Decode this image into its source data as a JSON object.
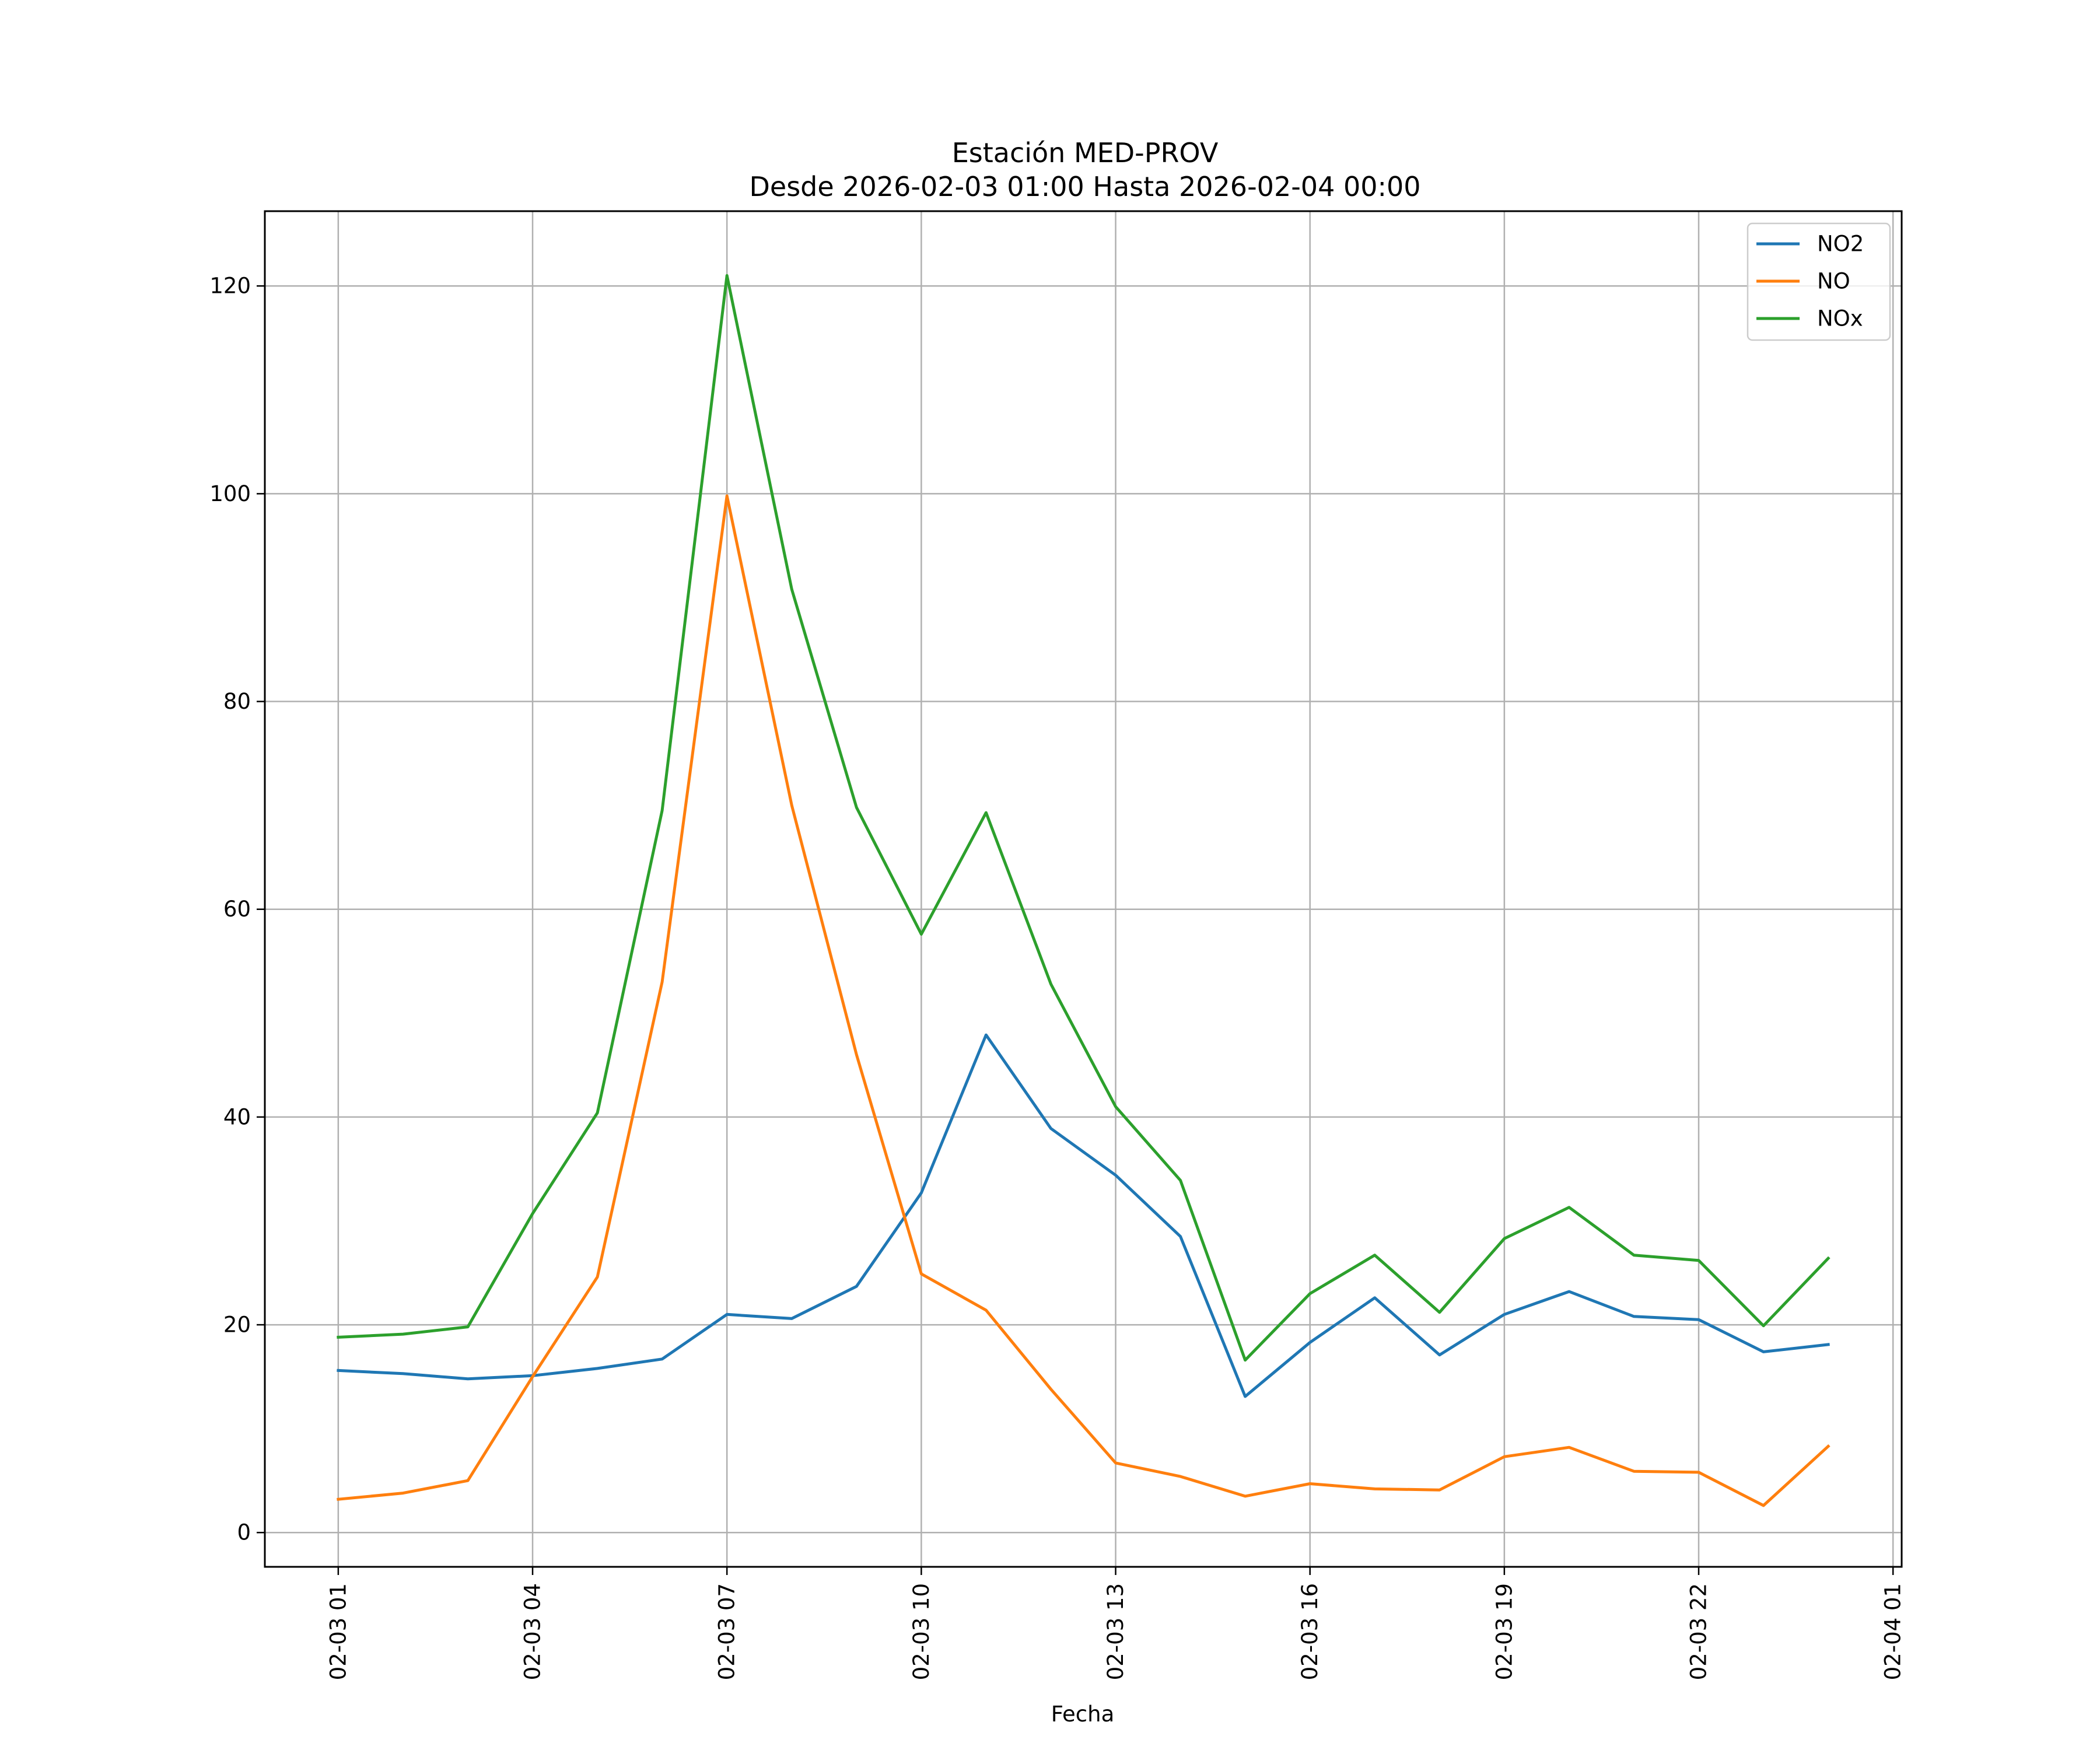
{
  "chart_data": {
    "type": "line",
    "title": "Estación MED-PROV",
    "subtitle": "Desde 2026-02-03 01:00 Hasta 2026-02-04 00:00",
    "xlabel": "Fecha",
    "ylabel": "",
    "x": [
      "2026-02-03 01:00",
      "2026-02-03 02:00",
      "2026-02-03 03:00",
      "2026-02-03 04:00",
      "2026-02-03 05:00",
      "2026-02-03 06:00",
      "2026-02-03 07:00",
      "2026-02-03 08:00",
      "2026-02-03 09:00",
      "2026-02-03 10:00",
      "2026-02-03 11:00",
      "2026-02-03 12:00",
      "2026-02-03 13:00",
      "2026-02-03 14:00",
      "2026-02-03 15:00",
      "2026-02-03 16:00",
      "2026-02-03 17:00",
      "2026-02-03 18:00",
      "2026-02-03 19:00",
      "2026-02-03 20:00",
      "2026-02-03 21:00",
      "2026-02-03 22:00",
      "2026-02-03 23:00",
      "2026-02-04 00:00"
    ],
    "series": [
      {
        "name": "NO2",
        "color": "#1f77b4",
        "values": [
          15.6,
          15.3,
          14.8,
          15.1,
          15.8,
          16.7,
          21.0,
          20.6,
          23.7,
          32.7,
          47.9,
          38.9,
          34.4,
          28.5,
          13.1,
          18.3,
          22.6,
          17.1,
          21.0,
          23.2,
          20.8,
          20.5,
          17.4,
          18.1
        ]
      },
      {
        "name": "NO",
        "color": "#ff7f0e",
        "values": [
          3.2,
          3.8,
          5.0,
          15.0,
          24.6,
          53.0,
          99.8,
          70.0,
          46.0,
          24.9,
          21.4,
          13.8,
          6.7,
          5.4,
          3.5,
          4.7,
          4.2,
          4.1,
          7.3,
          8.2,
          5.9,
          5.8,
          2.6,
          8.3
        ]
      },
      {
        "name": "NOx",
        "color": "#2ca02c",
        "values": [
          18.8,
          19.1,
          19.8,
          30.7,
          40.4,
          69.5,
          121.0,
          90.8,
          69.8,
          57.6,
          69.3,
          52.8,
          41.0,
          33.9,
          16.6,
          23.0,
          26.7,
          21.2,
          28.3,
          31.3,
          26.7,
          26.2,
          19.9,
          26.4
        ]
      }
    ],
    "x_tick_labels": [
      "02-03 01",
      "02-03 04",
      "02-03 07",
      "02-03 10",
      "02-03 13",
      "02-03 16",
      "02-03 19",
      "02-03 22",
      "02-04 01"
    ],
    "x_tick_values": [
      "2026-02-03 01:00",
      "2026-02-03 04:00",
      "2026-02-03 07:00",
      "2026-02-03 10:00",
      "2026-02-03 13:00",
      "2026-02-03 16:00",
      "2026-02-03 19:00",
      "2026-02-03 22:00",
      "2026-02-04 01:00"
    ],
    "xlim": [
      "2026-02-02 23:52",
      "2026-02-04 01:08"
    ],
    "y_ticks": [
      0,
      20,
      40,
      60,
      80,
      100,
      120
    ],
    "ylim": [
      -3.3,
      127.2
    ],
    "grid": true,
    "legend_position": "top-right"
  }
}
